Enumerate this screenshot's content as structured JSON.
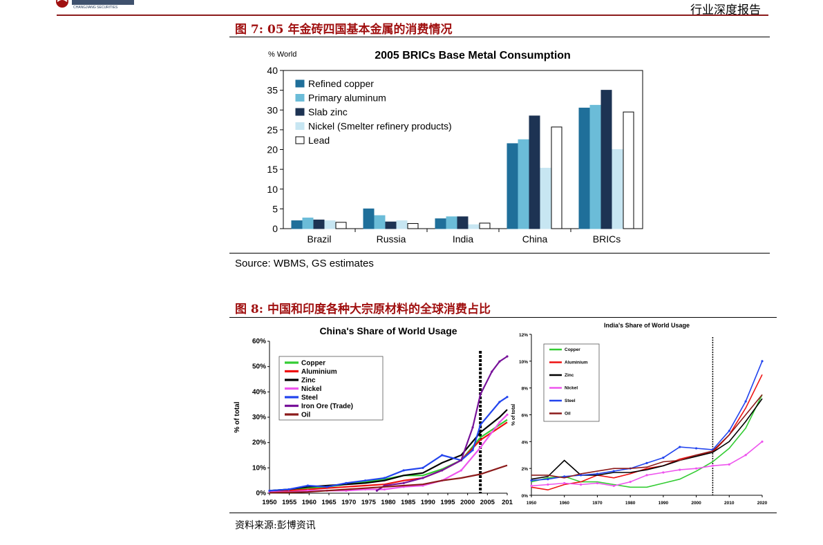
{
  "header": {
    "report_type": "行业深度报告",
    "logo_text": "CHANGJIANG SECURITIES"
  },
  "figure7": {
    "title": "图 7:  05 年金砖四国基本金属的消费情况",
    "source": "Source: WBMS, GS estimates"
  },
  "figure8": {
    "title": "图 8:  中国和印度各种大宗原材料的全球消费占比",
    "source": "资料来源:彭博资讯"
  },
  "chart_data": [
    {
      "type": "bar",
      "title": "2005 BRICs Base Metal Consumption",
      "ylabel": "% World",
      "ylim": [
        0,
        40
      ],
      "yticks": [
        "0",
        "5",
        "10",
        "15",
        "20",
        "25",
        "30",
        "35",
        "40"
      ],
      "categories": [
        "Brazil",
        "Russia",
        "India",
        "China",
        "BRICs"
      ],
      "legend_position": "top-left",
      "series": [
        {
          "name": "Refined copper",
          "color": "#1f6f9a",
          "values": [
            2.0,
            5.0,
            2.5,
            21.5,
            30.5
          ]
        },
        {
          "name": "Primary aluminum",
          "color": "#6bbcd8",
          "values": [
            2.7,
            3.3,
            3.0,
            22.5,
            31.2
          ]
        },
        {
          "name": "Slab zinc",
          "color": "#1d3353",
          "values": [
            2.2,
            1.7,
            3.0,
            28.5,
            35.0
          ]
        },
        {
          "name": "Nickel (Smelter refinery products)",
          "color": "#c7e6f2",
          "values": [
            2.0,
            2.0,
            1.0,
            15.3,
            20.0
          ]
        },
        {
          "name": "Lead",
          "color": "#ffffff",
          "values": [
            1.6,
            1.3,
            1.4,
            25.7,
            29.5
          ]
        }
      ]
    },
    {
      "type": "line",
      "title": "China's Share of World Usage",
      "ylabel": "% of total",
      "ylim": [
        0,
        60
      ],
      "yticks": [
        "0%",
        "10%",
        "20%",
        "30%",
        "40%",
        "50%",
        "60%"
      ],
      "xticks": [
        "1950",
        "1955",
        "1960",
        "1965",
        "1970",
        "1975",
        "1980",
        "1985",
        "1990",
        "1995",
        "2000",
        "2005",
        "201"
      ],
      "marker_line_x": 2005,
      "legend_position": "top-left",
      "series": [
        {
          "name": "Copper",
          "color": "#33cc33",
          "x": [
            1950,
            1955,
            1960,
            1965,
            1970,
            1975,
            1980,
            1985,
            1990,
            1995,
            2000,
            2005,
            2010,
            2012
          ],
          "y": [
            1,
            1.5,
            2,
            2.5,
            3.5,
            4.5,
            5.5,
            7,
            7,
            9.5,
            13,
            22,
            27,
            29
          ]
        },
        {
          "name": "Aluminium",
          "color": "#ee1111",
          "x": [
            1950,
            1955,
            1960,
            1965,
            1970,
            1975,
            1980,
            1985,
            1990,
            1995,
            2000,
            2005,
            2010,
            2012
          ],
          "y": [
            0.5,
            1,
            1.5,
            2,
            2.5,
            3,
            3.5,
            5,
            6,
            9,
            13,
            21,
            26,
            28
          ]
        },
        {
          "name": "Zinc",
          "color": "#000000",
          "x": [
            1950,
            1955,
            1960,
            1965,
            1970,
            1975,
            1980,
            1985,
            1990,
            1995,
            2000,
            2005,
            2010,
            2012
          ],
          "y": [
            1,
            1.5,
            2.5,
            3,
            3.5,
            4,
            5,
            7,
            8,
            12,
            15,
            24,
            30,
            33
          ]
        },
        {
          "name": "Nickel",
          "color": "#ee55ee",
          "x": [
            1950,
            1955,
            1960,
            1965,
            1970,
            1975,
            1980,
            1985,
            1990,
            1995,
            2000,
            2005,
            2010,
            2012
          ],
          "y": [
            0.5,
            0.5,
            1,
            1,
            1,
            1.5,
            1.5,
            2.5,
            3,
            5,
            9,
            18,
            28,
            31
          ]
        },
        {
          "name": "Steel",
          "color": "#2244ee",
          "x": [
            1950,
            1955,
            1960,
            1965,
            1970,
            1975,
            1980,
            1985,
            1990,
            1995,
            2000,
            2003,
            2005,
            2010,
            2012
          ],
          "y": [
            1,
            1.5,
            3,
            2.5,
            4,
            5,
            6,
            9,
            10,
            15,
            13,
            17,
            27,
            36,
            38
          ]
        },
        {
          "name": "Iron Ore (Trade)",
          "color": "#771199",
          "x": [
            1978,
            1980,
            1985,
            1990,
            1995,
            2000,
            2003,
            2005,
            2008,
            2010,
            2012
          ],
          "y": [
            1,
            3,
            4,
            6,
            9,
            13,
            26,
            39,
            48,
            52,
            54
          ]
        },
        {
          "name": "Oil",
          "color": "#8b1a1a",
          "x": [
            1950,
            1955,
            1960,
            1965,
            1970,
            1975,
            1980,
            1985,
            1990,
            1995,
            2000,
            2005,
            2010,
            2012
          ],
          "y": [
            0.2,
            0.3,
            0.5,
            1,
            1.5,
            2,
            2.5,
            3,
            3.5,
            5,
            6,
            7.5,
            10,
            11
          ]
        }
      ]
    },
    {
      "type": "line",
      "title": "India's Share of World Usage",
      "ylabel": "% of total",
      "ylim": [
        0,
        12
      ],
      "yticks": [
        "0%",
        "2%",
        "4%",
        "6%",
        "8%",
        "10%",
        "12%"
      ],
      "xticks": [
        "1950",
        "1960",
        "1970",
        "1980",
        "1990",
        "2000",
        "2010",
        "2020"
      ],
      "marker_line_x": 2005,
      "legend_position": "top-left",
      "series": [
        {
          "name": "Copper",
          "color": "#33cc33",
          "x": [
            1950,
            1955,
            1960,
            1965,
            1970,
            1975,
            1980,
            1985,
            1990,
            1995,
            2000,
            2005,
            2010,
            2015,
            2020
          ],
          "y": [
            1,
            1.3,
            1.4,
            1,
            1,
            0.8,
            0.6,
            0.6,
            0.9,
            1.2,
            1.8,
            2.5,
            3.5,
            5,
            7.5
          ]
        },
        {
          "name": "Aluminium",
          "color": "#ee1111",
          "x": [
            1950,
            1955,
            1960,
            1965,
            1970,
            1975,
            1980,
            1985,
            1990,
            1995,
            2000,
            2005,
            2010,
            2015,
            2020
          ],
          "y": [
            0.6,
            0.4,
            0.8,
            1,
            1.5,
            1.3,
            1.6,
            2,
            2.2,
            2.7,
            3,
            3.2,
            4.5,
            6.5,
            9
          ]
        },
        {
          "name": "Zinc",
          "color": "#000000",
          "x": [
            1950,
            1955,
            1960,
            1965,
            1970,
            1975,
            1980,
            1985,
            1990,
            1995,
            2000,
            2005,
            2010,
            2015,
            2020
          ],
          "y": [
            1.2,
            1.4,
            2.6,
            1.5,
            1.5,
            1.7,
            1.7,
            1.9,
            2.2,
            2.6,
            2.9,
            3.2,
            4,
            5.5,
            7.2
          ]
        },
        {
          "name": "Nickel",
          "color": "#ee55ee",
          "x": [
            1950,
            1955,
            1960,
            1965,
            1970,
            1975,
            1980,
            1985,
            1990,
            1995,
            2000,
            2005,
            2010,
            2015,
            2020
          ],
          "y": [
            0.7,
            0.8,
            0.9,
            0.8,
            0.9,
            0.7,
            1,
            1.5,
            1.7,
            1.9,
            2,
            2.2,
            2.3,
            3,
            4
          ]
        },
        {
          "name": "Steel",
          "color": "#2244ee",
          "x": [
            1950,
            1955,
            1960,
            1965,
            1970,
            1975,
            1980,
            1985,
            1990,
            1995,
            2000,
            2005,
            2010,
            2015,
            2020
          ],
          "y": [
            1.1,
            1.2,
            1.4,
            1.5,
            1.6,
            1.8,
            2,
            2.4,
            2.8,
            3.6,
            3.5,
            3.4,
            4.8,
            7,
            10
          ]
        },
        {
          "name": "Oil",
          "color": "#8b1a1a",
          "x": [
            1950,
            1955,
            1960,
            1965,
            1970,
            1975,
            1980,
            1985,
            1990,
            1995,
            2000,
            2005,
            2010,
            2015,
            2020
          ],
          "y": [
            1.5,
            1.5,
            1.3,
            1.6,
            1.8,
            2,
            2,
            2.1,
            2.5,
            2.6,
            3,
            3.3,
            4.5,
            6,
            7.5
          ]
        }
      ]
    }
  ]
}
